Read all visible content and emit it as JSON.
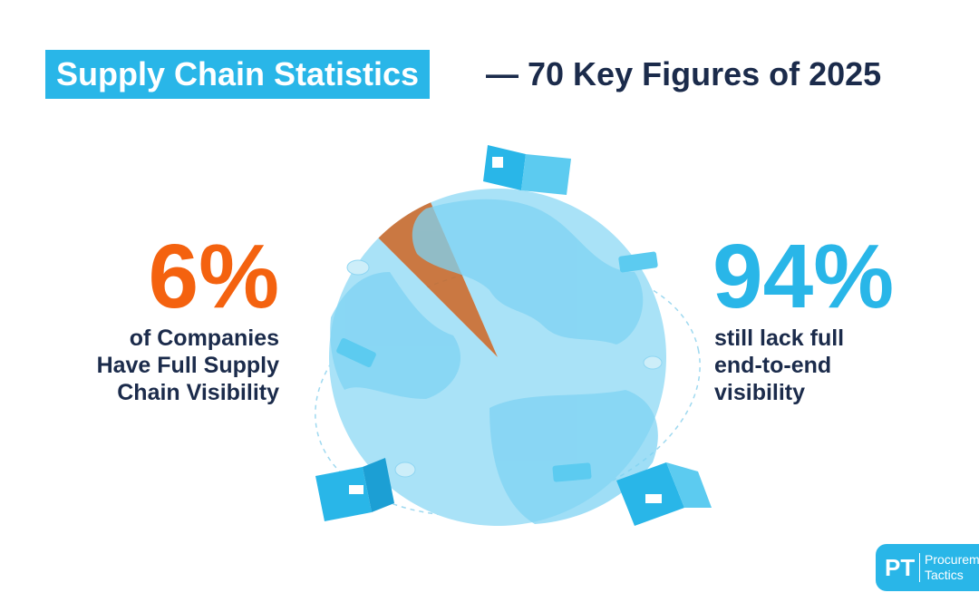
{
  "chart_data": {
    "type": "pie",
    "title": "Supply Chain Statistics",
    "subtitle": "— 70 Key Figures of 2025",
    "categories": [
      "of Companies Have Full Supply Chain Visibility",
      "still lack full end-to-end visibility"
    ],
    "values": [
      6,
      94
    ],
    "value_labels": [
      "6%",
      "94%"
    ],
    "colors": [
      "#c4692e",
      "#a9e2f7"
    ]
  },
  "logo": {
    "initials": "PT",
    "name_lines": [
      "Procurement",
      "Tactics"
    ]
  }
}
